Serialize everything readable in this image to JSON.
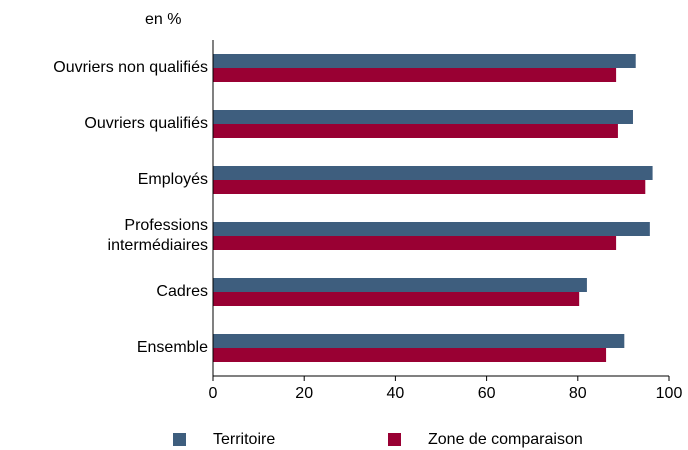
{
  "chart_data": {
    "type": "hbar",
    "unit_label": "en %",
    "categories": [
      "Ouvriers non qualifiés",
      "Ouvriers qualifiés",
      "Employés",
      "Professions\nintermédiaires",
      "Cadres",
      "Ensemble"
    ],
    "series": [
      {
        "name": "Territoire",
        "color": "#3e5e7e",
        "values": [
          92.7,
          92.1,
          96.4,
          95.8,
          82.0,
          90.2
        ]
      },
      {
        "name": "Zone de comparaison",
        "color": "#990033",
        "values": [
          88.4,
          88.8,
          94.8,
          88.4,
          80.3,
          86.2
        ]
      }
    ],
    "xlim": [
      0,
      100
    ],
    "xticks": [
      0,
      20,
      40,
      60,
      80,
      100
    ],
    "grid": false
  }
}
